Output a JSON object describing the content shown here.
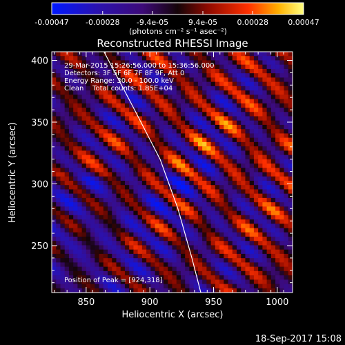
{
  "colorbar": {
    "tick_labels": [
      "-0.00047",
      "-0.00028",
      "-9.4e-05",
      "9.4e-05",
      "0.00028",
      "0.00047"
    ],
    "tick_values": [
      -0.00047,
      -0.00028,
      -9.4e-05,
      9.4e-05,
      0.00028,
      0.00047
    ],
    "range": [
      -0.00047,
      0.00047
    ],
    "unit_text": "(photons cm⁻² s⁻¹ asec⁻²)"
  },
  "chart_data": {
    "type": "heatmap",
    "title": "Reconstructed RHESSI Image",
    "xlabel": "Heliocentric X (arcsec)",
    "ylabel": "Heliocentric Y (arcsec)",
    "xlim": [
      823,
      1012
    ],
    "ylim": [
      212,
      407
    ],
    "xticks": [
      850,
      900,
      950,
      1000
    ],
    "yticks": [
      250,
      300,
      350,
      400
    ],
    "limb_curve": [
      [
        864,
        407
      ],
      [
        888,
        360
      ],
      [
        908,
        320
      ],
      [
        922,
        280
      ],
      [
        933,
        240
      ],
      [
        940,
        212
      ]
    ],
    "annotations": [
      "29-Mar-2015 15:26:56.000 to 15:36:56.000",
      "Detectors: 3F 5F 6F 7F 8F 9F, Att 0",
      "Energy Range: 30.0 - 100.0 keV",
      "Clean    Total counts: 1.85E+04"
    ],
    "peak_label": "Position of Peak = [924,318]",
    "peak": [
      924,
      318
    ]
  },
  "footer": {
    "timestamp": "18-Sep-2017 15:08"
  },
  "colors": {
    "background": "#000000",
    "foreground": "#ffffff",
    "colormap": [
      "#0018ff",
      "#2a12b0",
      "#3d0a78",
      "#1a0610",
      "#8e0a00",
      "#ff3000",
      "#ffb000",
      "#ffff70"
    ]
  }
}
